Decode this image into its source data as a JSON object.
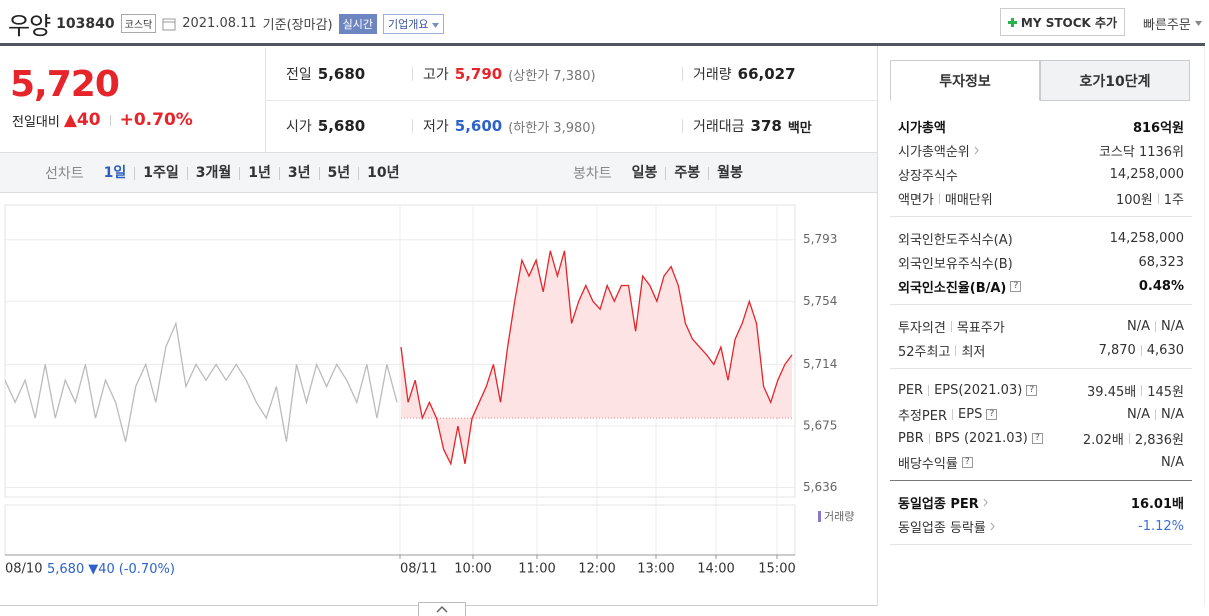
{
  "header": {
    "name": "우양",
    "code": "103840",
    "market": "코스닥",
    "date": "2021.08.11",
    "basis": "기준(장마감)",
    "realtime": "실시간",
    "company": "기업개요",
    "mystock": "MY STOCK 추가",
    "quick_order": "빠른주문"
  },
  "quote": {
    "price": "5,720",
    "change_label": "전일대비",
    "change": "▲40",
    "change_pct": "+0.70%",
    "rows": [
      [
        {
          "label": "전일",
          "value": "5,680"
        },
        {
          "label": "고가",
          "value": "5,790",
          "note": "(상한가 7,380)"
        },
        {
          "label": "거래량",
          "value": "66,027"
        }
      ],
      [
        {
          "label": "시가",
          "value": "5,680"
        },
        {
          "label": "저가",
          "value": "5,600",
          "note": "(하한가 3,980)"
        },
        {
          "label": "거래대금",
          "value": "378",
          "unit": "백만"
        }
      ]
    ]
  },
  "chart_tabs": {
    "line_label": "선차트",
    "line": [
      "1일",
      "1주일",
      "3개월",
      "1년",
      "3년",
      "5년",
      "10년"
    ],
    "candle_label": "봉차트",
    "candle": [
      "일봉",
      "주봉",
      "월봉"
    ]
  },
  "chart_data": {
    "type": "line",
    "ylim": [
      5630,
      5815
    ],
    "yticks": [
      {
        "value": 5793,
        "label": "5,793"
      },
      {
        "value": 5754,
        "label": "5,754"
      },
      {
        "value": 5714,
        "label": "5,714"
      },
      {
        "value": 5675,
        "label": "5,675"
      },
      {
        "value": 5636,
        "label": "5,636"
      }
    ],
    "reference_line": 5680,
    "series": [
      {
        "color": "#bbbbbb",
        "values": [
          5704,
          5690,
          5704,
          5680,
          5714,
          5680,
          5704,
          5690,
          5714,
          5680,
          5704,
          5690,
          5665,
          5700,
          5714,
          5690,
          5725,
          5740,
          5700,
          5714,
          5704,
          5714,
          5704,
          5714,
          5704,
          5690,
          5680,
          5700,
          5665,
          5714,
          5690,
          5714,
          5700,
          5714,
          5704,
          5690,
          5714,
          5680,
          5714,
          5690
        ]
      },
      {
        "color": "#e5252a",
        "below_color": "#3a6fd8",
        "fill": "#fde3e3",
        "values": [
          5725,
          5690,
          5704,
          5680,
          5690,
          5680,
          5660,
          5651,
          5675,
          5651,
          5680,
          5690,
          5700,
          5714,
          5690,
          5725,
          5754,
          5780,
          5770,
          5780,
          5760,
          5786,
          5770,
          5786,
          5740,
          5754,
          5764,
          5754,
          5749,
          5764,
          5754,
          5764,
          5764,
          5735,
          5770,
          5764,
          5754,
          5770,
          5776,
          5764,
          5740,
          5730,
          5725,
          5720,
          5714,
          5725,
          5704,
          5730,
          5740,
          5754,
          5740,
          5700,
          5690,
          5704,
          5714,
          5720
        ]
      }
    ],
    "x_labels": [
      "08/10",
      "08/11",
      "10:00",
      "11:00",
      "12:00",
      "13:00",
      "14:00",
      "15:00"
    ],
    "volume_label": "거래량",
    "footer": {
      "close": "5,680",
      "change": "▼40",
      "pct": "(-0.70%)"
    }
  },
  "info": {
    "tabs": [
      "투자정보",
      "호가10단계"
    ],
    "groups": [
      [
        {
          "label": [
            "시가총액"
          ],
          "value": [
            "816억원"
          ],
          "bold": true
        },
        {
          "label": [
            "시가총액순위"
          ],
          "link": true,
          "value": [
            "코스닥 1136위"
          ]
        },
        {
          "label": [
            "상장주식수"
          ],
          "value": [
            "14,258,000"
          ]
        },
        {
          "label": [
            "액면가",
            "매매단위"
          ],
          "value": [
            "100원",
            "1주"
          ]
        }
      ],
      [
        {
          "label": [
            "외국인한도주식수(A)"
          ],
          "value": [
            "14,258,000"
          ]
        },
        {
          "label": [
            "외국인보유주식수(B)"
          ],
          "value": [
            "68,323"
          ]
        },
        {
          "label": [
            "외국인소진율(B/A)"
          ],
          "help": "?",
          "value": [
            "0.48%"
          ],
          "bold": true
        }
      ],
      [
        {
          "label": [
            "투자의견",
            "목표주가"
          ],
          "value": [
            "N/A",
            "N/A"
          ]
        },
        {
          "label": [
            "52주최고",
            "최저"
          ],
          "value": [
            "7,870",
            "4,630"
          ]
        }
      ],
      [
        {
          "label": [
            "PER",
            "EPS(2021.03)"
          ],
          "help": "?",
          "value": [
            "39.45배",
            "145원"
          ]
        },
        {
          "label": [
            "추정PER",
            "EPS"
          ],
          "help": "?",
          "value": [
            "N/A",
            "N/A"
          ]
        },
        {
          "label": [
            "PBR",
            "BPS (2021.03)"
          ],
          "help": "?",
          "value": [
            "2.02배",
            "2,836원"
          ]
        },
        {
          "label": [
            "배당수익률"
          ],
          "help": "?",
          "value": [
            "N/A"
          ]
        }
      ],
      [
        {
          "label": [
            "동일업종 PER"
          ],
          "link": true,
          "value": [
            "16.01배"
          ],
          "bold": true
        },
        {
          "label": [
            "동일업종 등락률"
          ],
          "link": true,
          "value": [
            "-1.12%"
          ],
          "value_color": "#3a6fd8"
        }
      ]
    ]
  }
}
